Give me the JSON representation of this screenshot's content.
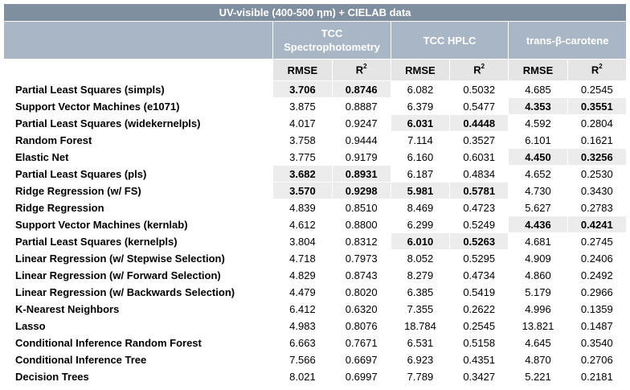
{
  "table": {
    "title": "UV-visible (400-500 ηm) + CIELAB data",
    "groups": [
      {
        "line1": "TCC",
        "line2": "Spectrophotometry"
      },
      {
        "line1": "TCC HPLC",
        "line2": ""
      },
      {
        "line1": "trans-β-carotene",
        "line2": ""
      }
    ],
    "subheaders": [
      "RMSE",
      "R",
      "RMSE",
      "R",
      "RMSE",
      "R"
    ],
    "superscript": "2",
    "rows": [
      {
        "name": "Partial Least Squares (simpls)",
        "values": [
          "3.706",
          "0.8746",
          "6.082",
          "0.5032",
          "4.685",
          "0.2545"
        ],
        "highlight": [
          0,
          1
        ]
      },
      {
        "name": "Support Vector Machines (e1071)",
        "values": [
          "3.875",
          "0.8887",
          "6.379",
          "0.5477",
          "4.353",
          "0.3551"
        ],
        "highlight": [
          4,
          5
        ]
      },
      {
        "name": "Partial Least Squares (widekernelpls)",
        "values": [
          "4.017",
          "0.9247",
          "6.031",
          "0.4448",
          "4.592",
          "0.2804"
        ],
        "highlight": [
          2,
          3
        ]
      },
      {
        "name": "Random Forest",
        "values": [
          "3.758",
          "0.9444",
          "7.114",
          "0.3527",
          "6.101",
          "0.1621"
        ],
        "highlight": []
      },
      {
        "name": "Elastic Net",
        "values": [
          "3.775",
          "0.9179",
          "6.160",
          "0.6031",
          "4.450",
          "0.3256"
        ],
        "highlight": [
          4,
          5
        ]
      },
      {
        "name": "Partial Least Squares (pls)",
        "values": [
          "3.682",
          "0.8931",
          "6.187",
          "0.4834",
          "4.652",
          "0.2530"
        ],
        "highlight": [
          0,
          1
        ]
      },
      {
        "name": "Ridge Regression (w/ FS)",
        "values": [
          "3.570",
          "0.9298",
          "5.981",
          "0.5781",
          "4.730",
          "0.3430"
        ],
        "highlight": [
          0,
          1,
          2,
          3
        ]
      },
      {
        "name": "Ridge Regression",
        "values": [
          "4.839",
          "0.8510",
          "8.469",
          "0.4723",
          "5.627",
          "0.2783"
        ],
        "highlight": []
      },
      {
        "name": "Support Vector Machines (kernlab)",
        "values": [
          "4.612",
          "0.8800",
          "6.299",
          "0.5249",
          "4.436",
          "0.4241"
        ],
        "highlight": [
          4,
          5
        ]
      },
      {
        "name": "Partial Least Squares (kernelpls)",
        "values": [
          "3.804",
          "0.8312",
          "6.010",
          "0.5263",
          "4.681",
          "0.2745"
        ],
        "highlight": [
          2,
          3
        ]
      },
      {
        "name": "Linear Regression (w/ Stepwise Selection)",
        "values": [
          "4.718",
          "0.7973",
          "8.052",
          "0.5295",
          "4.909",
          "0.2406"
        ],
        "highlight": []
      },
      {
        "name": "Linear Regression (w/ Forward Selection)",
        "values": [
          "4.829",
          "0.8743",
          "8.279",
          "0.4734",
          "4.860",
          "0.2492"
        ],
        "highlight": []
      },
      {
        "name": "Linear Regression (w/ Backwards Selection)",
        "values": [
          "4.479",
          "0.8020",
          "6.385",
          "0.5419",
          "5.179",
          "0.2966"
        ],
        "highlight": []
      },
      {
        "name": "K-Nearest Neighbors",
        "values": [
          "6.412",
          "0.6320",
          "7.355",
          "0.2622",
          "4.996",
          "0.1359"
        ],
        "highlight": []
      },
      {
        "name": "Lasso",
        "values": [
          "4.983",
          "0.8076",
          "18.784",
          "0.2545",
          "13.821",
          "0.1487"
        ],
        "highlight": []
      },
      {
        "name": "Conditional Inference Random Forest",
        "values": [
          "6.663",
          "0.7671",
          "6.531",
          "0.5158",
          "4.645",
          "0.3540"
        ],
        "highlight": []
      },
      {
        "name": "Conditional Inference Tree",
        "values": [
          "7.566",
          "0.6697",
          "6.923",
          "0.4351",
          "4.870",
          "0.2706"
        ],
        "highlight": []
      },
      {
        "name": "Decision Trees",
        "values": [
          "8.021",
          "0.6997",
          "7.789",
          "0.3427",
          "5.221",
          "0.2181"
        ],
        "highlight": []
      }
    ]
  }
}
